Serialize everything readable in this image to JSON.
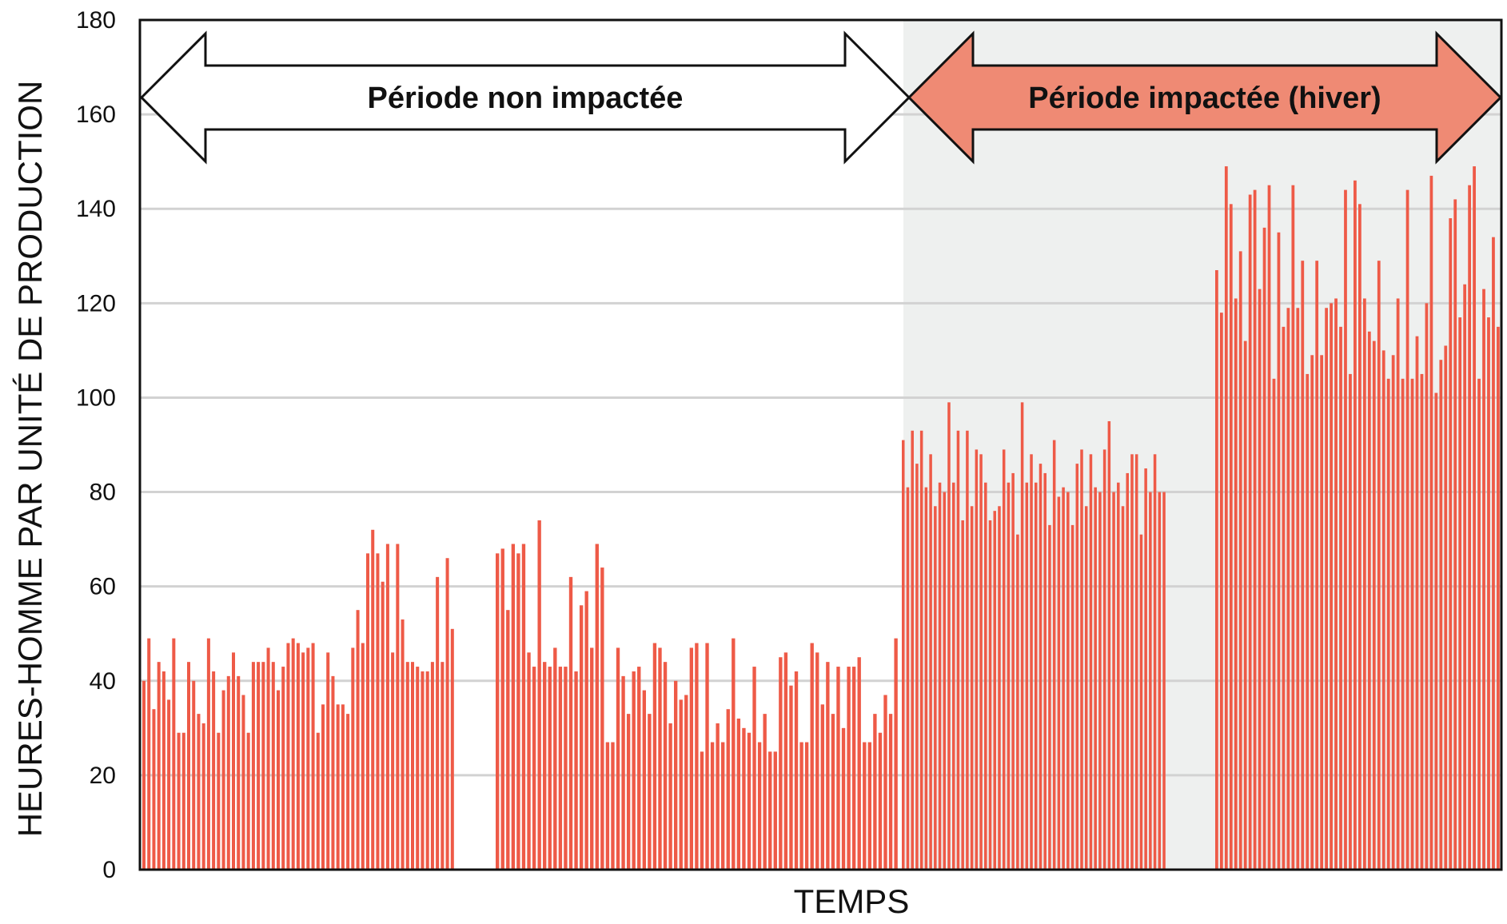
{
  "chart_data": {
    "type": "bar",
    "title": "",
    "xlabel": "TEMPS",
    "ylabel": "HEURES-HOMME PAR UNITÉ DE PRODUCTION",
    "ylim": [
      0,
      180
    ],
    "yticks": [
      0,
      20,
      40,
      60,
      80,
      100,
      120,
      140,
      160,
      180
    ],
    "grid": true,
    "highlight_region_label": "hiver",
    "colors": {
      "bar": "#ee5a47",
      "impacted_arrow": "#ef8a74",
      "impacted_background": "#eef0ef",
      "grid": "#d2d2d2",
      "axis": "#111111"
    },
    "annotations": [
      {
        "label": "Période non impactée",
        "style": "outlined double arrow",
        "spans": "non-impacted period"
      },
      {
        "label": "Période impactée (hiver)",
        "style": "filled double arrow",
        "spans": "impacted period"
      }
    ],
    "segments": [
      {
        "period": "non-impacted",
        "values": [
          40,
          49,
          34,
          44,
          42,
          36,
          49,
          29,
          29,
          44,
          40,
          33,
          31,
          49,
          42,
          29,
          38,
          41,
          46,
          41,
          37,
          29,
          44,
          44,
          44,
          47,
          44,
          38,
          43,
          48,
          49,
          48,
          46,
          47,
          48,
          29,
          35,
          46,
          41,
          35,
          35,
          33,
          47,
          55,
          48,
          67,
          72,
          67,
          61,
          69,
          46,
          69,
          53,
          44,
          44,
          43,
          42,
          42,
          44,
          62,
          44,
          66,
          51
        ]
      },
      {
        "period": "non-impacted",
        "values": [
          67,
          68,
          55,
          69,
          67,
          69,
          46,
          43,
          74,
          44,
          43,
          47,
          43,
          43,
          62,
          42,
          56,
          59,
          47,
          69,
          64,
          27,
          27,
          47,
          41,
          33,
          42,
          43,
          38,
          33,
          48,
          47,
          44,
          31,
          40,
          36,
          37,
          47,
          48,
          25,
          48,
          27,
          31,
          27,
          34,
          49,
          32,
          30,
          29,
          43,
          27,
          33,
          25,
          25,
          45,
          46,
          39,
          42,
          27,
          27,
          48,
          46,
          35,
          44,
          33,
          43,
          30,
          43,
          43,
          45,
          27,
          27,
          33,
          29,
          37,
          33,
          49
        ]
      },
      {
        "period": "impacted",
        "values": [
          91,
          81,
          93,
          86,
          93,
          81,
          88,
          77,
          82,
          80,
          99,
          82,
          93,
          74,
          93,
          77,
          89,
          88,
          82,
          74,
          76,
          77,
          89,
          82,
          84,
          71,
          99,
          82,
          88,
          82,
          86,
          84,
          73,
          91,
          79,
          81,
          80,
          73,
          86,
          89,
          77,
          88,
          81,
          80,
          89,
          95,
          80,
          82,
          77,
          84,
          88,
          88,
          71,
          85,
          80,
          88,
          80,
          80
        ]
      },
      {
        "period": "impacted",
        "values": [
          127,
          118,
          149,
          141,
          121,
          131,
          112,
          143,
          144,
          123,
          136,
          145,
          104,
          135,
          115,
          119,
          145,
          119,
          129,
          105,
          109,
          129,
          109,
          119,
          120,
          121,
          115,
          144,
          105,
          146,
          141,
          121,
          114,
          112,
          129,
          110,
          104,
          109,
          121,
          104,
          144,
          104,
          113,
          105,
          120,
          147,
          101,
          108,
          111,
          138,
          142,
          117,
          124,
          145,
          149,
          104,
          123,
          117,
          134,
          115
        ]
      }
    ]
  }
}
